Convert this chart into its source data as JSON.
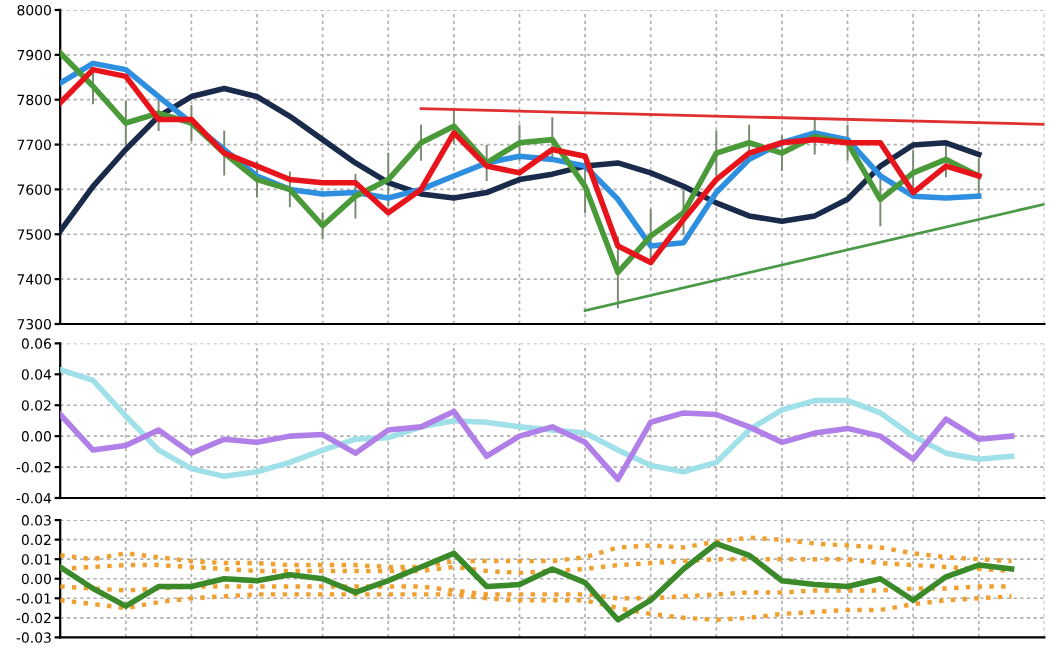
{
  "chart_data": [
    {
      "type": "line",
      "categories": [
        null,
        null,
        null,
        null,
        null,
        null,
        null,
        null,
        null,
        null,
        null,
        null,
        null,
        null,
        null,
        null,
        null,
        null,
        null,
        null,
        null,
        null,
        null,
        null,
        null,
        null,
        null,
        null,
        null,
        null,
        null
      ],
      "ylim": [
        7300,
        8000
      ],
      "yticks": [
        7300,
        7400,
        7500,
        7600,
        7700,
        7800,
        7900,
        8000
      ],
      "grid": true,
      "tick_labels": "y",
      "marker": "none",
      "series": [
        {
          "color": "#1a2a4a",
          "values": [
            7507,
            7607,
            7689,
            7763,
            7807,
            7825,
            7807,
            7763,
            7711,
            7659,
            7615,
            7590,
            7581,
            7593,
            7622,
            7634,
            7652,
            7659,
            7637,
            7607,
            7570,
            7541,
            7529,
            7541,
            7578,
            7652,
            7699,
            7704,
            7678,
            null,
            null
          ]
        },
        {
          "color": "#2e8fe0",
          "values": [
            7837,
            7881,
            7867,
            7807,
            7748,
            7689,
            7630,
            7600,
            7590,
            7593,
            7581,
            7600,
            7630,
            7659,
            7674,
            7667,
            7652,
            7578,
            7474,
            7481,
            7593,
            7667,
            7704,
            7726,
            7711,
            7630,
            7585,
            7581,
            7585,
            null,
            null
          ]
        },
        {
          "color": "#4a9a3a",
          "values": [
            7904,
            7830,
            7748,
            7770,
            7748,
            7681,
            7622,
            7600,
            7519,
            7585,
            7622,
            7704,
            7741,
            7659,
            7704,
            7711,
            7607,
            7415,
            7496,
            7548,
            7681,
            7704,
            7681,
            7718,
            7704,
            7578,
            7637,
            7667,
            7630,
            null,
            null
          ],
          "errors": [
            30,
            40,
            50,
            40,
            40,
            50,
            40,
            40,
            30,
            50,
            60,
            40,
            40,
            40,
            40,
            50,
            60,
            80,
            60,
            50,
            50,
            40,
            40,
            40,
            40,
            60,
            50,
            40,
            40,
            null,
            null
          ]
        },
        {
          "color": "#e8141c",
          "values": [
            7793,
            7867,
            7852,
            7756,
            7756,
            7681,
            7652,
            7622,
            7615,
            7615,
            7548,
            7600,
            7726,
            7652,
            7637,
            7689,
            7674,
            7474,
            7437,
            7533,
            7622,
            7681,
            7704,
            7711,
            7704,
            7704,
            7593,
            7652,
            7630,
            null,
            null
          ]
        },
        {
          "color": "#e03030",
          "values": [
            null,
            null,
            null,
            null,
            null,
            null,
            null,
            null,
            null,
            null,
            null,
            7780,
            null,
            null,
            null,
            null,
            null,
            null,
            null,
            null,
            null,
            null,
            null,
            null,
            null,
            null,
            null,
            null,
            null,
            null,
            7745
          ]
        },
        {
          "color": "#4a9a4a",
          "values": [
            null,
            null,
            null,
            null,
            null,
            null,
            null,
            null,
            null,
            null,
            null,
            null,
            null,
            null,
            null,
            null,
            7330,
            null,
            null,
            null,
            null,
            null,
            null,
            null,
            null,
            null,
            null,
            null,
            null,
            null,
            7567
          ]
        }
      ]
    },
    {
      "type": "line",
      "categories": [
        null,
        null,
        null,
        null,
        null,
        null,
        null,
        null,
        null,
        null,
        null,
        null,
        null,
        null,
        null,
        null,
        null,
        null,
        null,
        null,
        null,
        null,
        null,
        null,
        null,
        null,
        null,
        null,
        null,
        null,
        null
      ],
      "ylim": [
        -0.04,
        0.06
      ],
      "yticks": [
        {
          "value": -0.04,
          "label": "-0.04"
        },
        {
          "value": -0.02,
          "label": "-0.02"
        },
        {
          "value": 0,
          "label": "0.00"
        },
        {
          "value": 0.02,
          "label": "0.02"
        },
        {
          "value": 0.04,
          "label": "0.04"
        },
        {
          "value": 0.06,
          "label": "0.06"
        }
      ],
      "grid": true,
      "tick_labels": "y",
      "marker": "none",
      "series": [
        {
          "color": "#a0e0e8",
          "values": [
            0.043,
            0.036,
            0.013,
            -0.009,
            -0.021,
            -0.026,
            -0.023,
            -0.017,
            -0.009,
            -0.002,
            -0.001,
            0.006,
            0.01,
            0.009,
            0.006,
            0.004,
            0.002,
            -0.009,
            -0.019,
            -0.023,
            -0.017,
            0.004,
            0.017,
            0.023,
            0.023,
            0.015,
            0,
            -0.011,
            -0.015,
            -0.013,
            null
          ]
        },
        {
          "color": "#b080e8",
          "values": [
            0.014,
            -0.009,
            -0.006,
            0.004,
            -0.011,
            -0.002,
            -0.004,
            0,
            0.001,
            -0.011,
            0.004,
            0.006,
            0.016,
            -0.013,
            0,
            0.006,
            -0.004,
            -0.028,
            0.009,
            0.015,
            0.014,
            0.006,
            -0.004,
            0.002,
            0.005,
            0,
            -0.015,
            0.011,
            -0.002,
            0,
            null
          ]
        }
      ]
    },
    {
      "type": "line",
      "categories": [
        null,
        null,
        null,
        null,
        null,
        null,
        null,
        null,
        null,
        null,
        null,
        null,
        null,
        null,
        null,
        null,
        null,
        null,
        null,
        null,
        null,
        null,
        null,
        null,
        null,
        null,
        null,
        null,
        null,
        null,
        null
      ],
      "ylim": [
        -0.03,
        0.03
      ],
      "yticks": [
        {
          "value": -0.03,
          "label": "-0.03"
        },
        {
          "value": -0.02,
          "label": "-0.02"
        },
        {
          "value": -0.01,
          "label": "-0.01"
        },
        {
          "value": 0,
          "label": "0.00"
        },
        {
          "value": 0.01,
          "label": "0.01"
        },
        {
          "value": 0.02,
          "label": "0.02"
        },
        {
          "value": 0.03,
          "label": "0.03"
        }
      ],
      "grid": true,
      "tick_labels": "y",
      "marker": "none",
      "series": [
        {
          "color": "#f0a030",
          "line_style": "dotted",
          "values": [
            0.012,
            0.01,
            0.013,
            0.011,
            0.009,
            0.008,
            0.008,
            0.007,
            0.007,
            0.007,
            0.006,
            0.006,
            0.009,
            0.009,
            0.009,
            0.009,
            0.011,
            0.016,
            0.017,
            0.016,
            0.019,
            0.021,
            0.02,
            0.018,
            0.017,
            0.016,
            0.013,
            0.011,
            0.01,
            0.009,
            null
          ]
        },
        {
          "color": "#f0a030",
          "line_style": "dotted",
          "values": [
            0.005,
            0.006,
            0.007,
            0.007,
            0.006,
            0.005,
            0.004,
            0.004,
            0.004,
            0.004,
            0.004,
            0.004,
            0.006,
            0.004,
            0.003,
            0.004,
            0.005,
            0.007,
            0.008,
            0.009,
            0.01,
            0.01,
            0.01,
            0.01,
            0.01,
            0.008,
            0.007,
            0.006,
            0.005,
            0.004,
            null
          ]
        },
        {
          "color": "#f0a030",
          "line_style": "dotted",
          "values": [
            -0.004,
            -0.005,
            -0.006,
            -0.005,
            -0.004,
            -0.004,
            -0.004,
            -0.004,
            -0.004,
            -0.004,
            -0.004,
            -0.004,
            -0.006,
            -0.008,
            -0.008,
            -0.008,
            -0.008,
            -0.01,
            -0.01,
            -0.009,
            -0.008,
            -0.007,
            -0.007,
            -0.006,
            -0.006,
            -0.006,
            -0.005,
            -0.005,
            -0.004,
            -0.004,
            null
          ]
        },
        {
          "color": "#f0a030",
          "line_style": "dotted",
          "values": [
            -0.011,
            -0.013,
            -0.015,
            -0.012,
            -0.01,
            -0.009,
            -0.008,
            -0.008,
            -0.008,
            -0.008,
            -0.008,
            -0.008,
            -0.008,
            -0.01,
            -0.011,
            -0.011,
            -0.011,
            -0.015,
            -0.018,
            -0.02,
            -0.021,
            -0.02,
            -0.018,
            -0.017,
            -0.016,
            -0.016,
            -0.013,
            -0.011,
            -0.01,
            -0.009,
            null
          ]
        },
        {
          "color": "#3a8a2a",
          "values": [
            0.006,
            -0.005,
            -0.014,
            -0.004,
            -0.004,
            0,
            -0.001,
            0.002,
            0,
            -0.007,
            -0.001,
            0.006,
            0.013,
            -0.004,
            -0.003,
            0.005,
            -0.002,
            -0.021,
            -0.011,
            0.005,
            0.018,
            0.012,
            -0.001,
            -0.003,
            -0.004,
            0,
            -0.011,
            0.001,
            0.007,
            0.005,
            null
          ]
        }
      ]
    }
  ]
}
